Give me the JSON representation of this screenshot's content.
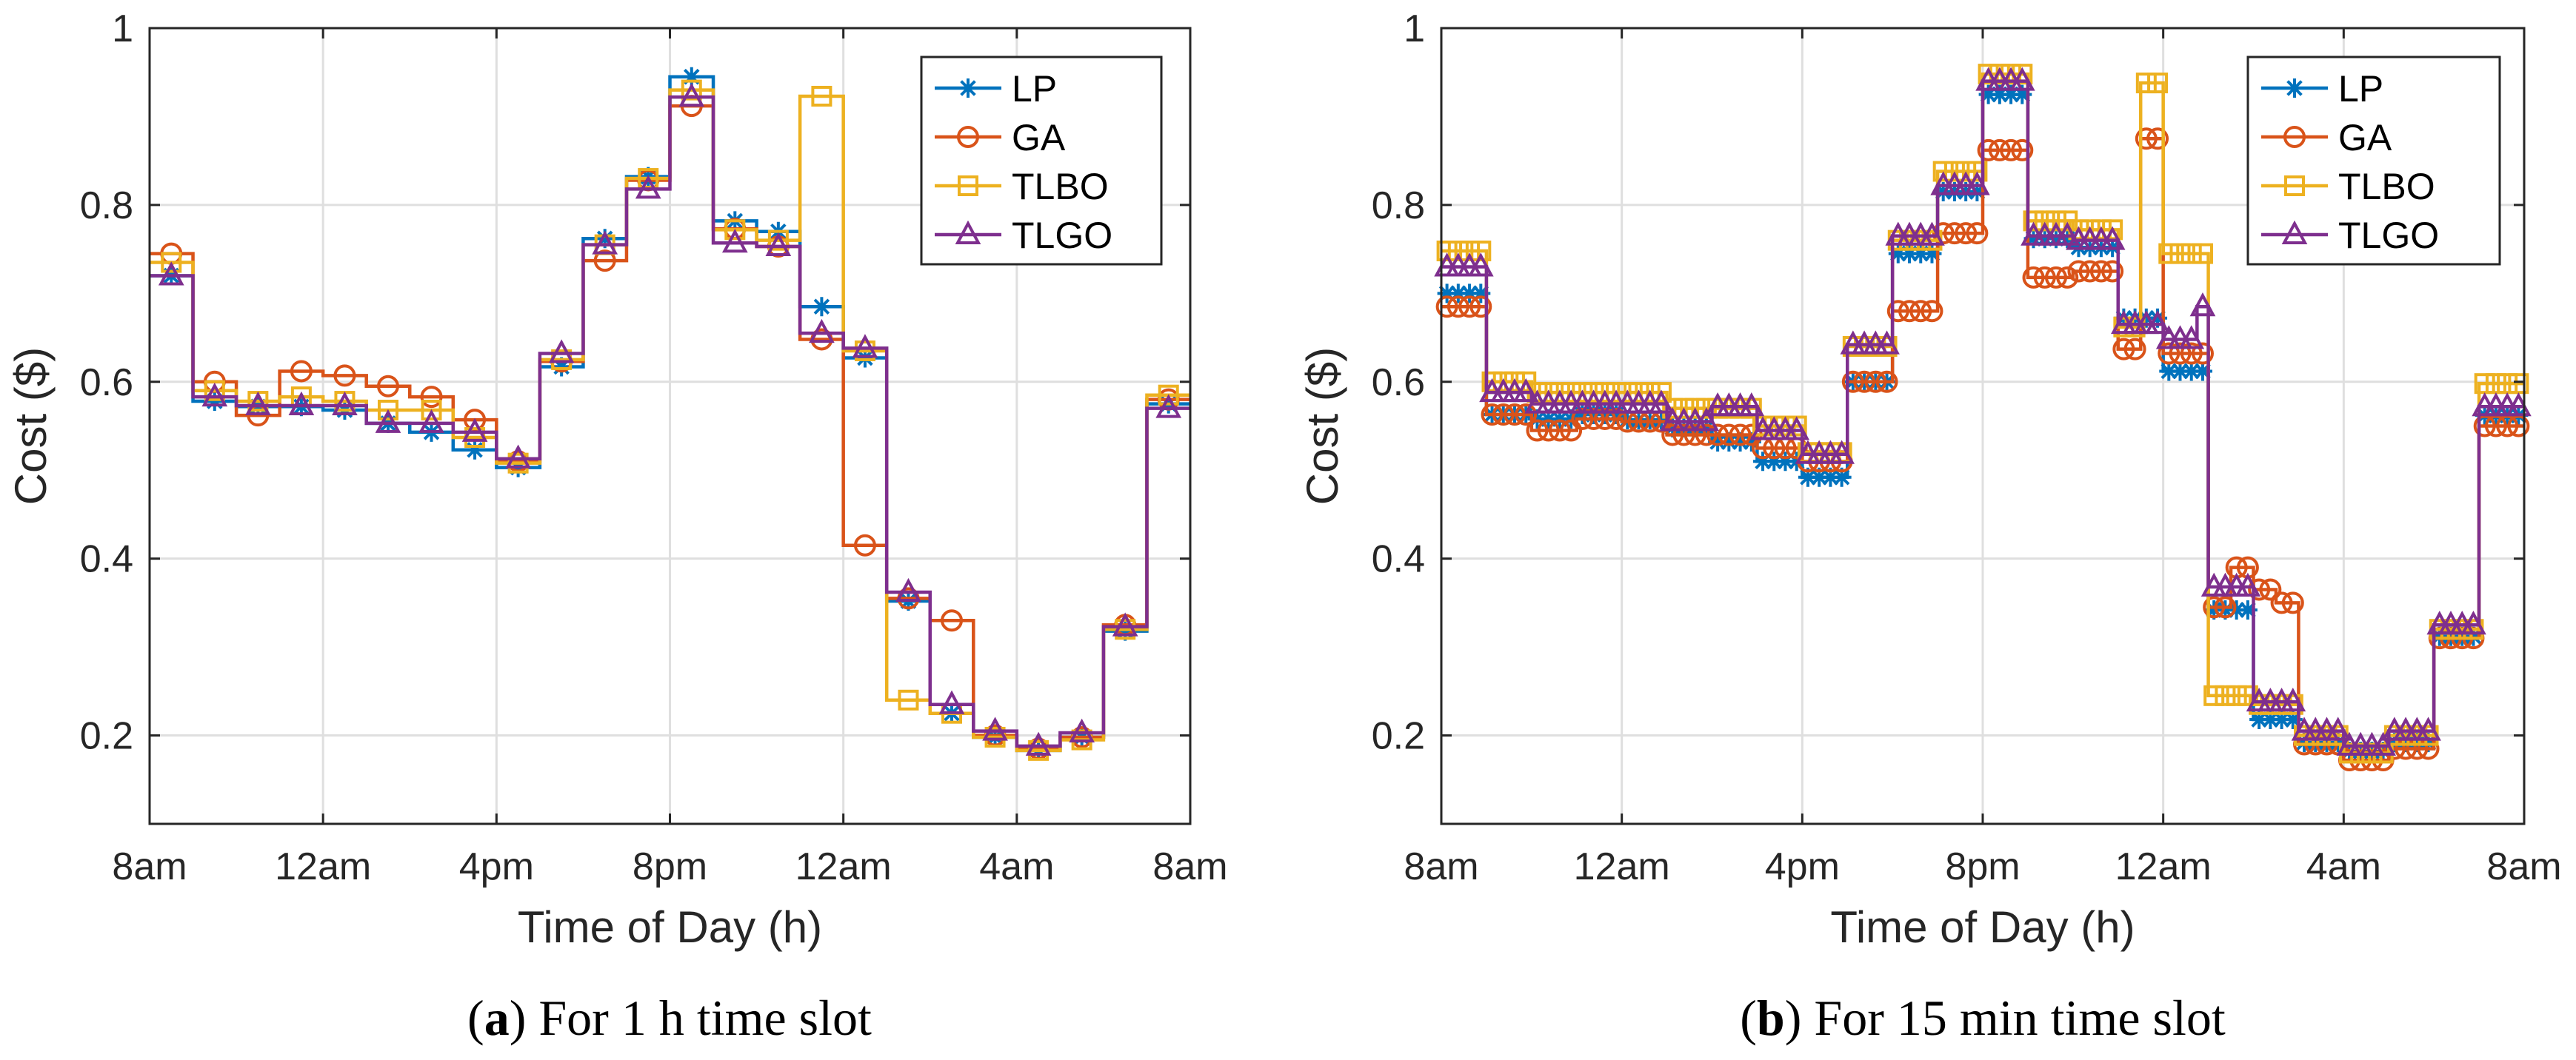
{
  "figure": {
    "colors": {
      "LP": "#0072BD",
      "GA": "#D95319",
      "TLBO": "#EDB120",
      "TLGO": "#7E2F8E"
    },
    "legend": [
      {
        "name": "LP",
        "marker": "star"
      },
      {
        "name": "GA",
        "marker": "circle"
      },
      {
        "name": "TLBO",
        "marker": "square"
      },
      {
        "name": "TLGO",
        "marker": "triangle"
      }
    ]
  },
  "chart_data": [
    {
      "type": "line",
      "step": true,
      "caption": {
        "letter": "a",
        "open": "(",
        "close": ")",
        "text": " For 1 h time slot"
      },
      "xlabel": "Time of Day (h)",
      "ylabel": "Cost ($)",
      "xlim": [
        0,
        24
      ],
      "ylim": [
        0.1,
        1
      ],
      "xticks": [
        0,
        4,
        8,
        12,
        16,
        20,
        24
      ],
      "xtick_labels": [
        "8am",
        "12am",
        "4pm",
        "8pm",
        "12am",
        "4am",
        "8am"
      ],
      "yticks": [
        0.2,
        0.4,
        0.6,
        0.8,
        1
      ],
      "ytick_labels": [
        "0.2",
        "0.4",
        "0.6",
        "0.8",
        "1"
      ],
      "grid": true,
      "legend_position": "top-right",
      "slot_hours": 1,
      "series": [
        {
          "name": "LP",
          "values": [
            0.72,
            0.578,
            0.572,
            0.572,
            0.568,
            0.553,
            0.543,
            0.523,
            0.503,
            0.617,
            0.762,
            0.832,
            0.945,
            0.782,
            0.77,
            0.685,
            0.627,
            0.352,
            0.225,
            0.198,
            0.183,
            0.198,
            0.318,
            0.575
          ]
        },
        {
          "name": "GA",
          "values": [
            0.745,
            0.6,
            0.562,
            0.612,
            0.607,
            0.595,
            0.583,
            0.557,
            0.51,
            0.623,
            0.737,
            0.828,
            0.912,
            0.773,
            0.753,
            0.648,
            0.415,
            0.355,
            0.33,
            0.2,
            0.185,
            0.198,
            0.325,
            0.58
          ]
        },
        {
          "name": "TLBO",
          "values": [
            0.735,
            0.59,
            0.578,
            0.583,
            0.578,
            0.568,
            0.568,
            0.537,
            0.508,
            0.625,
            0.755,
            0.83,
            0.93,
            0.772,
            0.76,
            0.923,
            0.635,
            0.24,
            0.225,
            0.198,
            0.183,
            0.195,
            0.32,
            0.585
          ]
        },
        {
          "name": "TLGO",
          "values": [
            0.72,
            0.583,
            0.573,
            0.573,
            0.573,
            0.553,
            0.553,
            0.543,
            0.513,
            0.632,
            0.755,
            0.818,
            0.922,
            0.757,
            0.753,
            0.655,
            0.638,
            0.362,
            0.235,
            0.205,
            0.188,
            0.203,
            0.323,
            0.57
          ]
        }
      ]
    },
    {
      "type": "line",
      "step": true,
      "caption": {
        "letter": "b",
        "open": "(",
        "close": ")",
        "text": " For 15 min time slot"
      },
      "xlabel": "Time of Day (h)",
      "ylabel": "Cost ($)",
      "xlim": [
        0,
        24
      ],
      "ylim": [
        0.1,
        1
      ],
      "xticks": [
        0,
        4,
        8,
        12,
        16,
        20,
        24
      ],
      "xtick_labels": [
        "8am",
        "12am",
        "4pm",
        "8pm",
        "12am",
        "4am",
        "8am"
      ],
      "yticks": [
        0.2,
        0.4,
        0.6,
        0.8,
        1
      ],
      "ytick_labels": [
        "0.2",
        "0.4",
        "0.6",
        "0.8",
        "1"
      ],
      "grid": true,
      "legend_position": "top-right",
      "slot_hours": 0.25,
      "series": [
        {
          "name": "LP",
          "values": [
            0.7,
            0.7,
            0.7,
            0.7,
            0.563,
            0.563,
            0.563,
            0.563,
            0.558,
            0.558,
            0.558,
            0.558,
            0.563,
            0.563,
            0.563,
            0.563,
            0.557,
            0.557,
            0.557,
            0.557,
            0.548,
            0.548,
            0.548,
            0.548,
            0.532,
            0.532,
            0.532,
            0.532,
            0.51,
            0.51,
            0.51,
            0.51,
            0.492,
            0.492,
            0.492,
            0.492,
            0.6,
            0.6,
            0.6,
            0.6,
            0.745,
            0.745,
            0.745,
            0.745,
            0.815,
            0.815,
            0.815,
            0.815,
            0.925,
            0.925,
            0.925,
            0.925,
            0.762,
            0.762,
            0.762,
            0.762,
            0.752,
            0.752,
            0.752,
            0.752,
            0.672,
            0.672,
            0.672,
            0.672,
            0.612,
            0.612,
            0.612,
            0.612,
            0.342,
            0.342,
            0.342,
            0.342,
            0.218,
            0.218,
            0.218,
            0.218,
            0.192,
            0.192,
            0.192,
            0.192,
            0.182,
            0.182,
            0.182,
            0.182,
            0.192,
            0.192,
            0.192,
            0.192,
            0.312,
            0.312,
            0.312,
            0.312,
            0.562,
            0.562,
            0.562,
            0.562
          ]
        },
        {
          "name": "GA",
          "values": [
            0.685,
            0.685,
            0.685,
            0.685,
            0.563,
            0.563,
            0.563,
            0.563,
            0.545,
            0.545,
            0.545,
            0.545,
            0.558,
            0.558,
            0.558,
            0.558,
            0.555,
            0.555,
            0.555,
            0.555,
            0.54,
            0.54,
            0.54,
            0.54,
            0.54,
            0.54,
            0.54,
            0.54,
            0.525,
            0.525,
            0.525,
            0.525,
            0.51,
            0.51,
            0.51,
            0.51,
            0.6,
            0.6,
            0.6,
            0.6,
            0.68,
            0.68,
            0.68,
            0.68,
            0.768,
            0.768,
            0.768,
            0.768,
            0.862,
            0.862,
            0.862,
            0.862,
            0.718,
            0.718,
            0.718,
            0.718,
            0.725,
            0.725,
            0.725,
            0.725,
            0.637,
            0.637,
            0.875,
            0.875,
            0.632,
            0.632,
            0.632,
            0.632,
            0.345,
            0.345,
            0.39,
            0.39,
            0.365,
            0.365,
            0.35,
            0.35,
            0.19,
            0.19,
            0.19,
            0.19,
            0.172,
            0.172,
            0.172,
            0.172,
            0.185,
            0.185,
            0.185,
            0.185,
            0.31,
            0.31,
            0.31,
            0.31,
            0.55,
            0.55,
            0.55,
            0.55
          ]
        },
        {
          "name": "TLBO",
          "values": [
            0.748,
            0.748,
            0.748,
            0.748,
            0.6,
            0.6,
            0.6,
            0.6,
            0.588,
            0.588,
            0.588,
            0.588,
            0.588,
            0.588,
            0.588,
            0.588,
            0.588,
            0.588,
            0.588,
            0.588,
            0.57,
            0.57,
            0.57,
            0.57,
            0.57,
            0.57,
            0.57,
            0.57,
            0.55,
            0.55,
            0.55,
            0.55,
            0.52,
            0.52,
            0.52,
            0.52,
            0.64,
            0.64,
            0.64,
            0.64,
            0.76,
            0.76,
            0.76,
            0.76,
            0.838,
            0.838,
            0.838,
            0.838,
            0.948,
            0.948,
            0.948,
            0.948,
            0.782,
            0.782,
            0.782,
            0.782,
            0.772,
            0.772,
            0.772,
            0.772,
            0.662,
            0.662,
            0.938,
            0.938,
            0.745,
            0.745,
            0.745,
            0.745,
            0.245,
            0.245,
            0.245,
            0.245,
            0.235,
            0.235,
            0.235,
            0.235,
            0.2,
            0.2,
            0.2,
            0.2,
            0.18,
            0.18,
            0.18,
            0.18,
            0.2,
            0.2,
            0.2,
            0.2,
            0.32,
            0.32,
            0.32,
            0.32,
            0.598,
            0.598,
            0.598,
            0.598
          ]
        },
        {
          "name": "TLGO",
          "values": [
            0.73,
            0.73,
            0.73,
            0.73,
            0.588,
            0.588,
            0.588,
            0.588,
            0.575,
            0.575,
            0.575,
            0.575,
            0.575,
            0.575,
            0.575,
            0.575,
            0.575,
            0.575,
            0.575,
            0.575,
            0.555,
            0.555,
            0.555,
            0.555,
            0.572,
            0.572,
            0.572,
            0.572,
            0.545,
            0.545,
            0.545,
            0.545,
            0.518,
            0.518,
            0.518,
            0.518,
            0.642,
            0.642,
            0.642,
            0.642,
            0.765,
            0.765,
            0.765,
            0.765,
            0.822,
            0.822,
            0.822,
            0.822,
            0.94,
            0.94,
            0.94,
            0.94,
            0.765,
            0.765,
            0.765,
            0.765,
            0.76,
            0.76,
            0.76,
            0.76,
            0.665,
            0.665,
            0.665,
            0.665,
            0.648,
            0.648,
            0.648,
            0.685,
            0.368,
            0.368,
            0.368,
            0.368,
            0.238,
            0.238,
            0.238,
            0.238,
            0.205,
            0.205,
            0.205,
            0.205,
            0.188,
            0.188,
            0.188,
            0.188,
            0.205,
            0.205,
            0.205,
            0.205,
            0.325,
            0.325,
            0.325,
            0.325,
            0.572,
            0.572,
            0.572,
            0.572
          ]
        }
      ]
    }
  ]
}
